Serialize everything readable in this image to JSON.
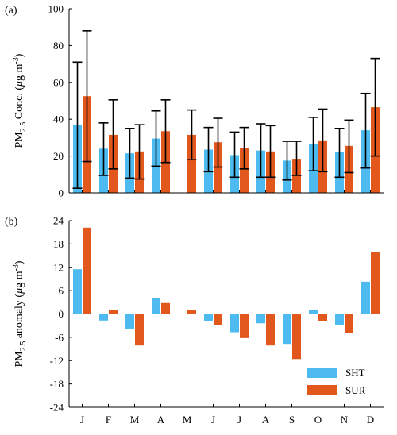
{
  "colors": {
    "SHT": "#4dbbef",
    "SUR": "#e2571c",
    "axis": "#000000"
  },
  "chart_data": [
    {
      "panel_label": "(a)",
      "type": "bar",
      "ylabel": {
        "main": "PM",
        "sub": "2.5",
        "unit_pre": " Conc. (",
        "mu": "μ",
        "unit_mid": "g m",
        "sup": "-3",
        "unit_post": ")"
      },
      "ylim": [
        0,
        100
      ],
      "yticks": [
        0,
        20,
        40,
        60,
        80,
        100
      ],
      "categories": [
        "J",
        "F",
        "M",
        "A",
        "M",
        "J",
        "J",
        "A",
        "S",
        "O",
        "N",
        "D"
      ],
      "series": [
        {
          "name": "SHT",
          "values": [
            37,
            24,
            21.5,
            29.5,
            null,
            23.5,
            20.5,
            23,
            17.5,
            26.5,
            22,
            34
          ],
          "err_low": [
            2.5,
            9.5,
            8,
            14.5,
            null,
            11.5,
            8.5,
            8.5,
            7,
            12,
            8.5,
            13.5
          ],
          "err_high": [
            71,
            38,
            35,
            44.5,
            null,
            35.5,
            33,
            37.5,
            28,
            41,
            35,
            54
          ]
        },
        {
          "name": "SUR",
          "values": [
            52.5,
            31.5,
            22.5,
            33.5,
            31.5,
            27.5,
            24.5,
            22.5,
            18.5,
            28.5,
            25.5,
            46.5
          ],
          "err_low": [
            17,
            13,
            7.5,
            16.5,
            18,
            14,
            13,
            8.5,
            9.5,
            11.5,
            11,
            20
          ],
          "err_high": [
            88,
            50.5,
            37,
            50.5,
            45,
            40.5,
            35.5,
            36.5,
            28,
            45.5,
            39.5,
            73
          ]
        }
      ]
    },
    {
      "panel_label": "(b)",
      "type": "bar",
      "ylabel": {
        "main": "PM",
        "sub": "2.5",
        "unit_pre": " anomaly (",
        "mu": "μ",
        "unit_mid": "g m",
        "sup": "-3",
        "unit_post": ")"
      },
      "ylim": [
        -24,
        24
      ],
      "yticks": [
        -24,
        -18,
        -12,
        -6,
        0,
        6,
        12,
        18,
        24
      ],
      "categories": [
        "J",
        "F",
        "M",
        "A",
        "M",
        "J",
        "J",
        "A",
        "S",
        "O",
        "N",
        "D"
      ],
      "series": [
        {
          "name": "SHT",
          "values": [
            11.5,
            -1.7,
            -3.9,
            4,
            null,
            -1.9,
            -4.7,
            -2.4,
            -7.7,
            1.1,
            -2.9,
            8.3
          ]
        },
        {
          "name": "SUR",
          "values": [
            22.2,
            1,
            -8.1,
            2.8,
            1,
            -2.9,
            -6.2,
            -8.1,
            -11.6,
            -1.9,
            -4.8,
            16
          ]
        }
      ],
      "legend": {
        "position": "bottom-right",
        "entries": [
          "SHT",
          "SUR"
        ]
      }
    }
  ]
}
